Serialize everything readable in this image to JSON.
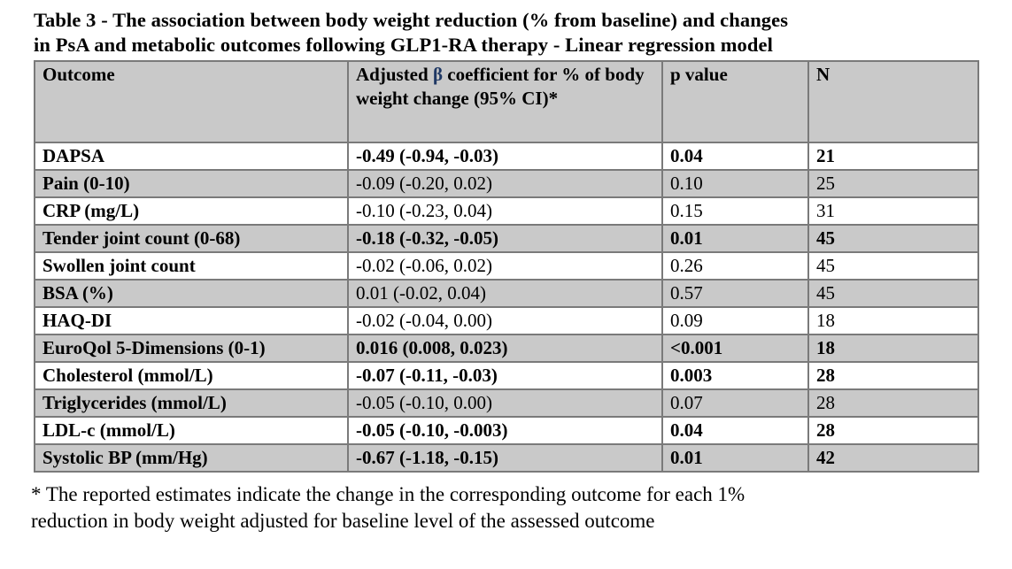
{
  "page": {
    "title_line1": "Table 3 - The association between body weight reduction (% from baseline) and changes",
    "title_line2": "in PsA and metabolic outcomes following GLP1-RA therapy - Linear regression model",
    "footnote_line1": "* The reported estimates indicate the change in the corresponding outcome for each 1%",
    "footnote_line2": "reduction in body weight adjusted for baseline level of the assessed outcome"
  },
  "colors": {
    "row_shade": "#c9c9c9",
    "table_border": "#7a7a7a",
    "beta_symbol": "#1f3864",
    "text": "#000000",
    "background": "#ffffff"
  },
  "table": {
    "header": {
      "outcome": "Outcome",
      "coef_prefix": "Adjusted ",
      "coef_beta": "β",
      "coef_suffix": " coefficient for % of body weight change (95% CI)*",
      "p": "p value",
      "n": "N"
    },
    "rows": [
      {
        "outcome": "DAPSA",
        "coef": "-0.49 (-0.94, -0.03)",
        "p": "0.04",
        "n": "21",
        "bold": true,
        "shaded": false
      },
      {
        "outcome": "Pain (0-10)",
        "coef": "-0.09 (-0.20, 0.02)",
        "p": "0.10",
        "n": "25",
        "bold": false,
        "shaded": true
      },
      {
        "outcome": "CRP (mg/L)",
        "coef": "-0.10 (-0.23, 0.04)",
        "p": "0.15",
        "n": "31",
        "bold": false,
        "shaded": false
      },
      {
        "outcome": "Tender joint count (0-68)",
        "coef": "-0.18 (-0.32, -0.05)",
        "p": "0.01",
        "n": "45",
        "bold": true,
        "shaded": true
      },
      {
        "outcome": "Swollen joint count",
        "coef": "-0.02 (-0.06, 0.02)",
        "p": "0.26",
        "n": "45",
        "bold": false,
        "shaded": false
      },
      {
        "outcome": "BSA (%)",
        "coef": "0.01 (-0.02, 0.04)",
        "p": "0.57",
        "n": "45",
        "bold": false,
        "shaded": true
      },
      {
        "outcome": "HAQ-DI",
        "coef": "-0.02 (-0.04, 0.00)",
        "p": "0.09",
        "n": "18",
        "bold": false,
        "shaded": false
      },
      {
        "outcome": "EuroQol 5-Dimensions (0-1)",
        "coef": "0.016 (0.008, 0.023)",
        "p": "<0.001",
        "n": "18",
        "bold": true,
        "shaded": true
      },
      {
        "outcome": "Cholesterol (mmol/L)",
        "coef": "-0.07 (-0.11, -0.03)",
        "p": "0.003",
        "n": "28",
        "bold": true,
        "shaded": false
      },
      {
        "outcome": "Triglycerides (mmol/L)",
        "coef": "-0.05 (-0.10, 0.00)",
        "p": "0.07",
        "n": "28",
        "bold": false,
        "shaded": true
      },
      {
        "outcome": "LDL-c (mmol/L)",
        "coef": "-0.05 (-0.10, -0.003)",
        "p": "0.04",
        "n": "28",
        "bold": true,
        "shaded": false
      },
      {
        "outcome": "Systolic BP (mm/Hg)",
        "coef": "-0.67 (-1.18, -0.15)",
        "p": "0.01",
        "n": "42",
        "bold": true,
        "shaded": true
      }
    ]
  }
}
